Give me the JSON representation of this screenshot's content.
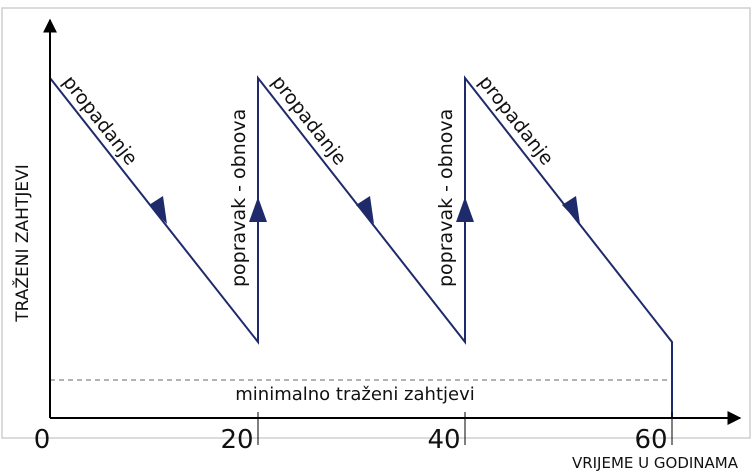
{
  "axes": {
    "y_label": "TRAŽENI ZAHTJEVI",
    "x_label": "VRIJEME U GODINAMA",
    "x_ticks": [
      "0",
      "20",
      "40",
      "60"
    ]
  },
  "min_requirement_label": "minimalno traženi zahtjevi",
  "phases": {
    "decay_label": "propadanje",
    "repair_label": "popravak - obnova"
  },
  "cycles": [
    {
      "decay_start_year": 0,
      "decay_end_year": 20
    },
    {
      "decay_start_year": 20,
      "decay_end_year": 40
    },
    {
      "decay_start_year": 40,
      "decay_end_year": 60
    }
  ],
  "colors": {
    "curve": "#1f2a6b",
    "axis": "#000000",
    "min_line": "#9a9a9a",
    "frame": "#cfcfcf"
  }
}
